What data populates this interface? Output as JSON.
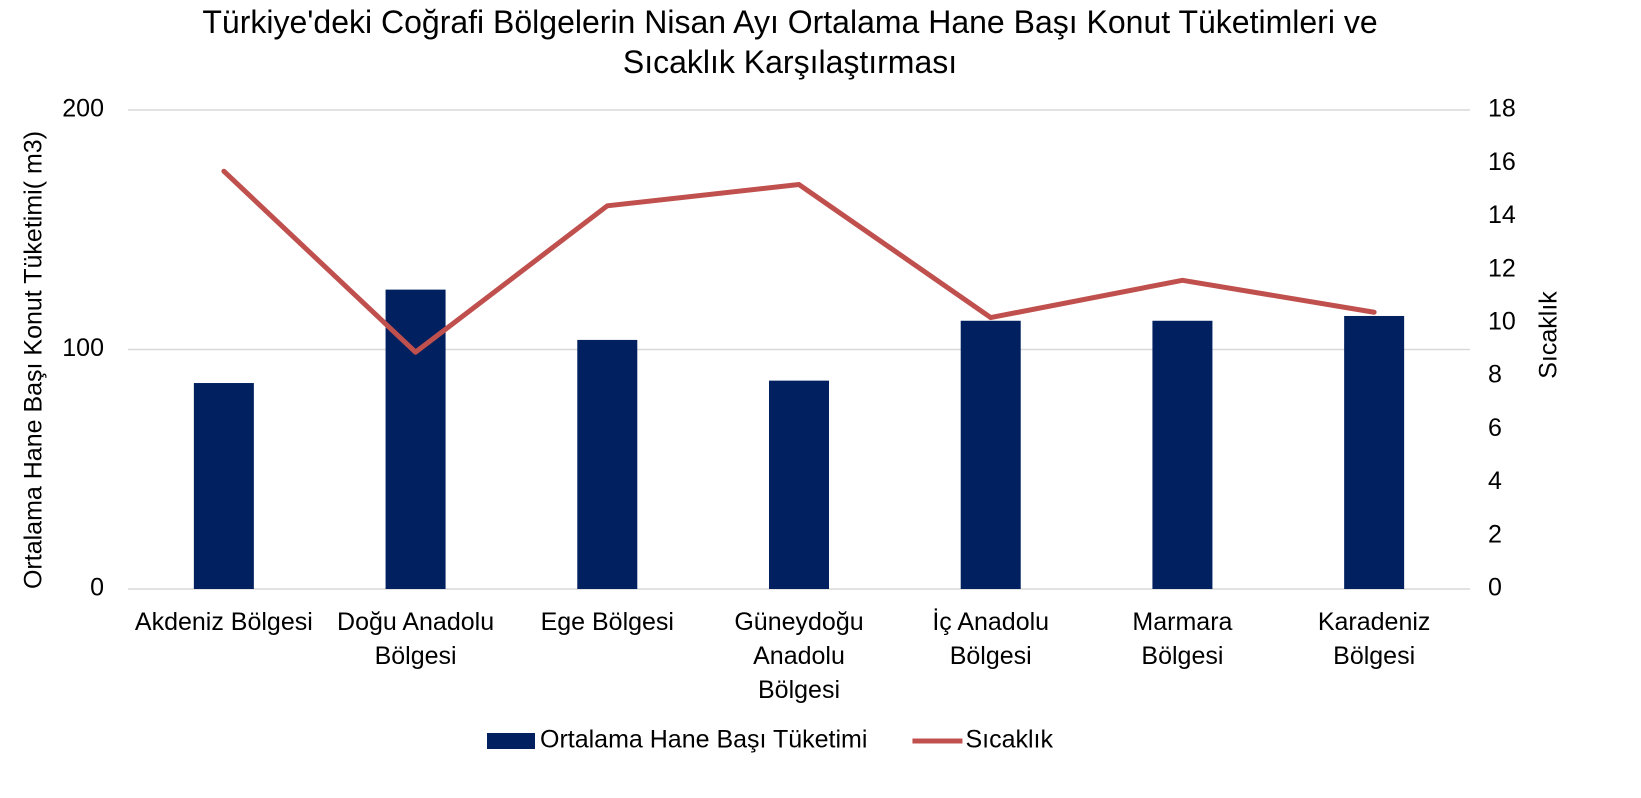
{
  "chart_data": {
    "type": "bar_line",
    "title": "Türkiye'deki Coğrafi Bölgelerin Nisan Ayı Ortalama Hane Başı Konut Tüketimleri ve Sıcaklık Karşılaştırması",
    "y_label": "Ortalama Hane Başı Konut Tüketimi( m3)",
    "y2_label": "Sıcaklık",
    "categories": [
      "Akdeniz Bölgesi",
      "Doğu Anadolu Bölgesi",
      "Ege Bölgesi",
      "Güneydoğu Anadolu Bölgesi",
      "İç Anadolu Bölgesi",
      "Marmara Bölgesi",
      "Karadeniz Bölgesi"
    ],
    "series": [
      {
        "name": "Ortalama Hane Başı Tüketimi",
        "type": "bar",
        "color": "#002060",
        "values": [
          86,
          125,
          104,
          87,
          112,
          112,
          114
        ]
      },
      {
        "name": "Sıcaklık",
        "type": "line",
        "axis": "y2",
        "color": "#c0504d",
        "values": [
          15.7,
          8.9,
          14.4,
          15.2,
          10.2,
          11.6,
          10.4
        ]
      }
    ],
    "ylim": [
      0,
      200
    ],
    "yticks": [
      0,
      100,
      200
    ],
    "y2lim": [
      0,
      18
    ],
    "y2ticks": [
      0,
      2,
      4,
      6,
      8,
      10,
      12,
      14,
      16,
      18
    ],
    "grid": true,
    "legend": "bottom"
  }
}
